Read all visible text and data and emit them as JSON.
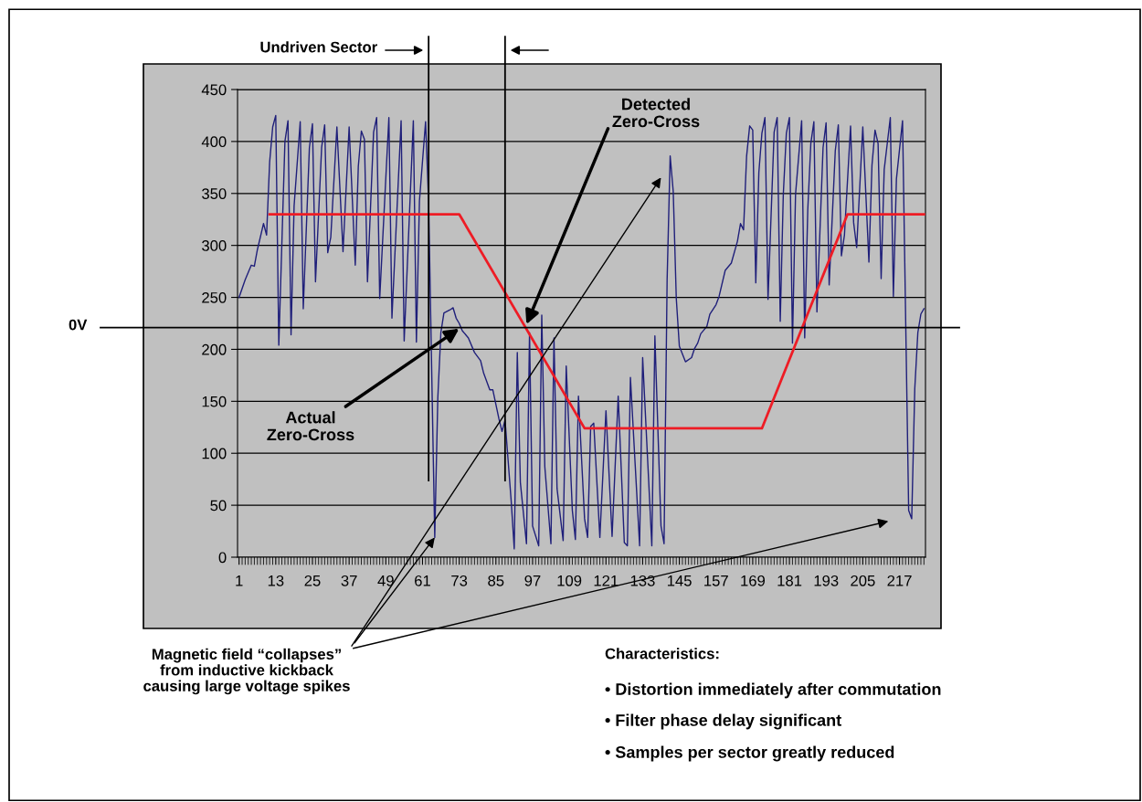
{
  "chart_data": {
    "type": "line",
    "xlim": [
      0.5,
      225.5
    ],
    "xticks": [
      1,
      13,
      25,
      37,
      49,
      61,
      73,
      85,
      97,
      109,
      121,
      133,
      145,
      157,
      169,
      181,
      193,
      205,
      217
    ],
    "ylim": [
      0,
      450
    ],
    "yticks": [
      0,
      50,
      100,
      150,
      200,
      250,
      300,
      350,
      400,
      450
    ],
    "grid": "y",
    "series": [
      {
        "color": "#1f1f7a",
        "x": [
          1,
          3,
          5,
          6,
          7,
          9,
          10,
          11,
          12,
          13,
          14,
          16,
          17,
          18,
          19,
          21,
          22,
          24,
          25,
          26,
          28,
          29,
          30,
          31,
          33,
          35,
          37,
          39,
          40,
          41,
          42,
          43,
          45,
          46,
          47,
          50,
          51,
          54,
          55,
          58,
          59,
          60,
          62,
          63,
          65,
          66,
          67,
          68,
          70,
          71,
          72,
          73,
          74,
          76,
          78,
          80,
          81,
          83,
          84,
          86,
          87,
          88,
          89,
          90,
          91,
          92,
          93,
          95,
          96,
          97,
          99,
          100,
          101,
          103,
          104,
          105,
          107,
          108,
          110,
          111,
          112,
          114,
          115,
          116,
          117,
          119,
          121,
          123,
          125,
          127,
          128,
          129,
          132,
          133,
          136,
          137,
          139,
          140,
          141,
          142,
          143,
          144,
          145,
          147,
          149,
          150,
          151,
          152,
          154,
          155,
          157,
          158,
          160,
          162,
          164,
          165,
          166,
          167,
          168,
          169,
          170,
          171,
          172,
          173,
          174,
          176,
          177,
          178,
          179,
          180,
          181,
          182,
          183,
          185,
          186,
          187,
          188,
          189,
          190,
          192,
          193,
          194,
          196,
          197,
          198,
          199,
          201,
          202,
          203,
          205,
          207,
          208,
          209,
          210,
          211,
          212,
          214,
          215,
          216,
          218,
          220,
          221,
          222,
          223,
          224,
          225
        ],
        "values": [
          250,
          267,
          281,
          280,
          296,
          321,
          310,
          380,
          414,
          425,
          204,
          400,
          420,
          214,
          338,
          419,
          239,
          394,
          417,
          265,
          394,
          416,
          293,
          308,
          414,
          294,
          414,
          281,
          376,
          410,
          402,
          265,
          409,
          423,
          249,
          423,
          230,
          420,
          208,
          420,
          207,
          343,
          419,
          341,
          19,
          153,
          216,
          235,
          238,
          240,
          230,
          225,
          218,
          211,
          197,
          189,
          177,
          161,
          161,
          133,
          121,
          132,
          93,
          54,
          8,
          197,
          72,
          13,
          216,
          30,
          11,
          233,
          87,
          13,
          211,
          66,
          16,
          184,
          45,
          17,
          155,
          37,
          19,
          126,
          129,
          19,
          141,
          20,
          155,
          14,
          11,
          173,
          11,
          192,
          11,
          213,
          30,
          13,
          267,
          386,
          352,
          249,
          203,
          188,
          192,
          201,
          206,
          215,
          222,
          234,
          243,
          251,
          276,
          283,
          304,
          321,
          315,
          386,
          415,
          411,
          264,
          370,
          408,
          423,
          248,
          409,
          423,
          227,
          349,
          408,
          423,
          206,
          349,
          420,
          211,
          334,
          398,
          419,
          236,
          394,
          418,
          262,
          391,
          416,
          290,
          310,
          415,
          322,
          298,
          414,
          284,
          377,
          411,
          398,
          268,
          373,
          423,
          251,
          364,
          420,
          45,
          37,
          162,
          216,
          234,
          239
        ]
      },
      {
        "color": "#ee1c25",
        "x": [
          11,
          73,
          114,
          172,
          200,
          225
        ],
        "values": [
          330,
          330,
          124,
          124,
          330,
          330
        ]
      }
    ],
    "ref_lines": [
      {
        "axis": "y",
        "value": 221,
        "label": "0V",
        "color": "#000000"
      },
      {
        "axis": "x",
        "value": 63,
        "label": "Undriven Sector",
        "color": "#000000"
      },
      {
        "axis": "x",
        "value": 88,
        "label": null,
        "color": "#000000"
      }
    ],
    "annotations": [
      {
        "text": "Detected\nZero-Cross",
        "x": 95,
        "y": 224
      },
      {
        "text": "Actual\nZero-Cross",
        "x": 73,
        "y": 220
      },
      {
        "text": "Magnetic field “collapses”\nfrom inductive kickback\ncausing large voltage spikes",
        "x": 65,
        "y": 19
      },
      "Characteristics:",
      "• Distortion immediately after commutation",
      "• Filter phase delay significant",
      "• Samples per sector greatly reduced"
    ]
  }
}
